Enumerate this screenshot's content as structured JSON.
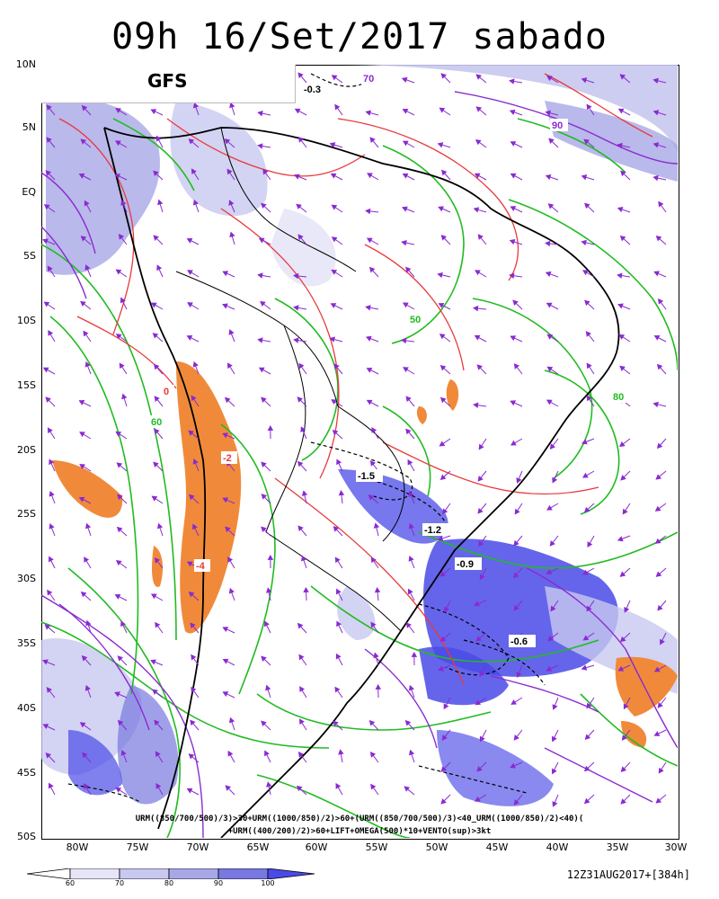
{
  "title": "09h 16/Set/2017 sabado",
  "model": "GFS",
  "run_info": "12Z31AUG2017+[384h]",
  "caption": [
    "URM((850/700/500)/3)>30+URM((1000/850)/2)>60+(URM((850/700/500)/3)<40_URM((1000/850)/2)<40)(",
    "+URM((400/200)/2)>60+LIFT+OMEGA(500)*10+VENTO(sup)>3kt"
  ],
  "lat_labels": [
    "10N",
    "5N",
    "EQ",
    "5S",
    "10S",
    "15S",
    "20S",
    "25S",
    "30S",
    "35S",
    "40S",
    "45S",
    "50S"
  ],
  "lon_labels": [
    "80W",
    "75W",
    "70W",
    "65W",
    "60W",
    "55W",
    "50W",
    "45W",
    "40W",
    "35W",
    "30W"
  ],
  "colorbar": {
    "ticks": [
      "60",
      "70",
      "80",
      "90",
      "100"
    ],
    "colors": [
      "#e6e6f8",
      "#c8c8f0",
      "#a8a8e6",
      "#7878e0",
      "#4a4ae8"
    ]
  },
  "colors": {
    "humidity_green": "#22bb22",
    "red_contour": "#e83a3a",
    "purple_contour": "#8a2ad0",
    "orange_fill": "#f08a3a",
    "wind_vector": "#8a2ad0",
    "coastline": "#000000"
  },
  "contour_labels": [
    {
      "text": "-0.3",
      "color": "#000000"
    },
    {
      "text": "70",
      "color": "#8a2ad0"
    },
    {
      "text": "90",
      "color": "#8a2ad0"
    },
    {
      "text": "-4",
      "color": "#e83a3a"
    },
    {
      "text": "-2",
      "color": "#e83a3a"
    },
    {
      "text": "0",
      "color": "#e83a3a"
    },
    {
      "text": "80",
      "color": "#22bb22"
    },
    {
      "text": "60",
      "color": "#22bb22"
    },
    {
      "text": "50",
      "color": "#22bb22"
    },
    {
      "text": "-1.5",
      "color": "#000000"
    },
    {
      "text": "-0.9",
      "color": "#000000"
    },
    {
      "text": "-0.6",
      "color": "#000000"
    },
    {
      "text": "-1.2",
      "color": "#000000"
    }
  ]
}
